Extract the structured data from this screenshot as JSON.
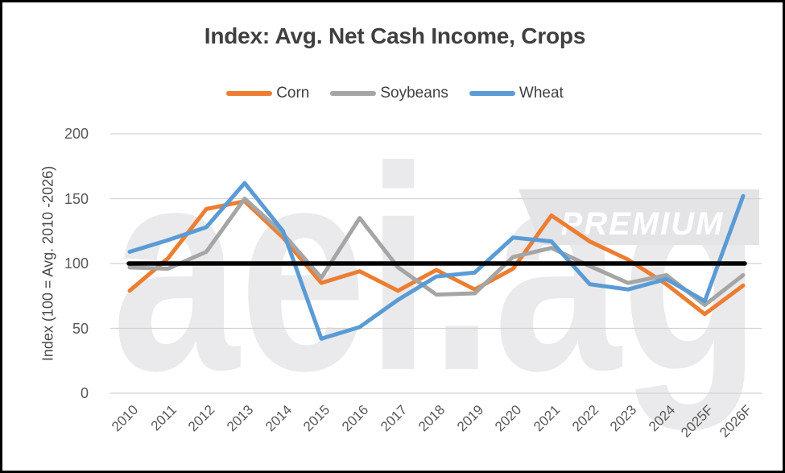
{
  "title": "Index: Avg. Net Cash Income, Crops",
  "watermark": {
    "text": "aei.ag",
    "badge": "PREMIUM"
  },
  "colors": {
    "corn": "#ED7D31",
    "soybeans": "#A5A5A5",
    "wheat": "#5B9BD5",
    "reference_line": "#000000",
    "gridline": "#D2D2D2",
    "axis_text": "#595959",
    "title_text": "#3F3F3F",
    "watermark_gray": "#EAEAEC"
  },
  "chart_data": {
    "type": "line",
    "title": "Index: Avg. Net Cash Income, Crops",
    "categories": [
      "2010",
      "2011",
      "2012",
      "2013",
      "2014",
      "2015",
      "2016",
      "2017",
      "2018",
      "2019",
      "2020",
      "2021",
      "2022",
      "2023",
      "2024",
      "2025F",
      "2026F"
    ],
    "series": [
      {
        "name": "Corn",
        "color": "#ED7D31",
        "values": [
          79,
          104,
          142,
          148,
          120,
          85,
          94,
          79,
          95,
          80,
          96,
          137,
          117,
          103,
          84,
          61,
          83
        ]
      },
      {
        "name": "Soybeans",
        "color": "#A5A5A5",
        "values": [
          97,
          96,
          109,
          150,
          123,
          89,
          135,
          97,
          76,
          77,
          105,
          112,
          98,
          85,
          91,
          68,
          91
        ]
      },
      {
        "name": "Wheat",
        "color": "#5B9BD5",
        "values": [
          109,
          118,
          128,
          162,
          125,
          42,
          51,
          72,
          90,
          93,
          120,
          117,
          84,
          80,
          88,
          71,
          152
        ]
      }
    ],
    "reference_line": {
      "label": "100",
      "value": 100,
      "color": "#000000"
    },
    "y_axis": {
      "title": "Index (100 = Avg. 2010 -2026)",
      "ticks": [
        0,
        50,
        100,
        150,
        200
      ],
      "range": [
        0,
        200
      ]
    },
    "x_axis": {
      "label_rotation_deg": -45
    },
    "legend_position": "top",
    "grid": "horizontal"
  }
}
